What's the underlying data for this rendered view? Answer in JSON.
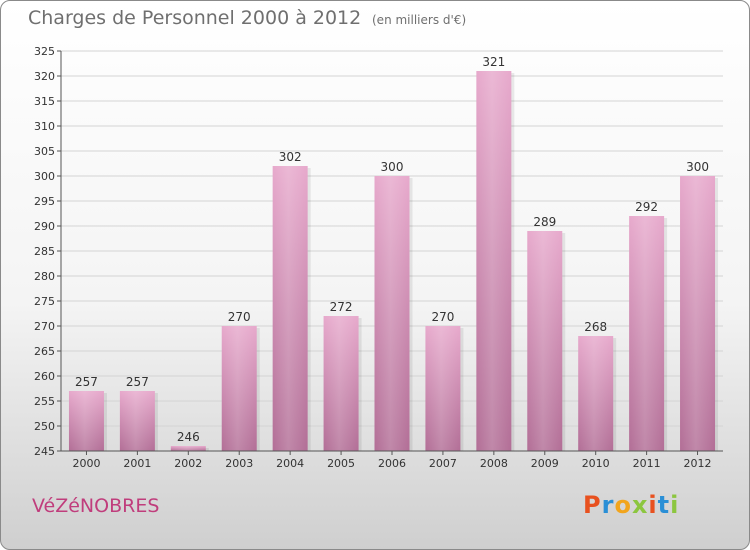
{
  "header": {
    "title": "Charges de Personnel 2000 à 2012",
    "subtitle": "(en milliers d'€)"
  },
  "footer": {
    "commune": "VéZéNOBRES",
    "brand": "Proxiti",
    "brand_colors": [
      "#e8511f",
      "#2a8fd6",
      "#f2a51d",
      "#8cc63f",
      "#e8511f",
      "#2a8fd6",
      "#8cc63f"
    ]
  },
  "colors": {
    "bar_top": "#e7a9cc",
    "bar_bottom": "#b26e96",
    "grid": "#d4d4d4",
    "axis": "#555555"
  },
  "chart_data": {
    "type": "bar",
    "categories": [
      "2000",
      "2001",
      "2002",
      "2003",
      "2004",
      "2005",
      "2006",
      "2007",
      "2008",
      "2009",
      "2010",
      "2011",
      "2012"
    ],
    "values": [
      257,
      257,
      246,
      270,
      302,
      272,
      300,
      270,
      321,
      289,
      268,
      292,
      300
    ],
    "ylim": [
      245,
      325
    ],
    "yticks": [
      245,
      250,
      255,
      260,
      265,
      270,
      275,
      280,
      285,
      290,
      295,
      300,
      305,
      310,
      315,
      320,
      325
    ],
    "grid": true,
    "legend": "none"
  }
}
